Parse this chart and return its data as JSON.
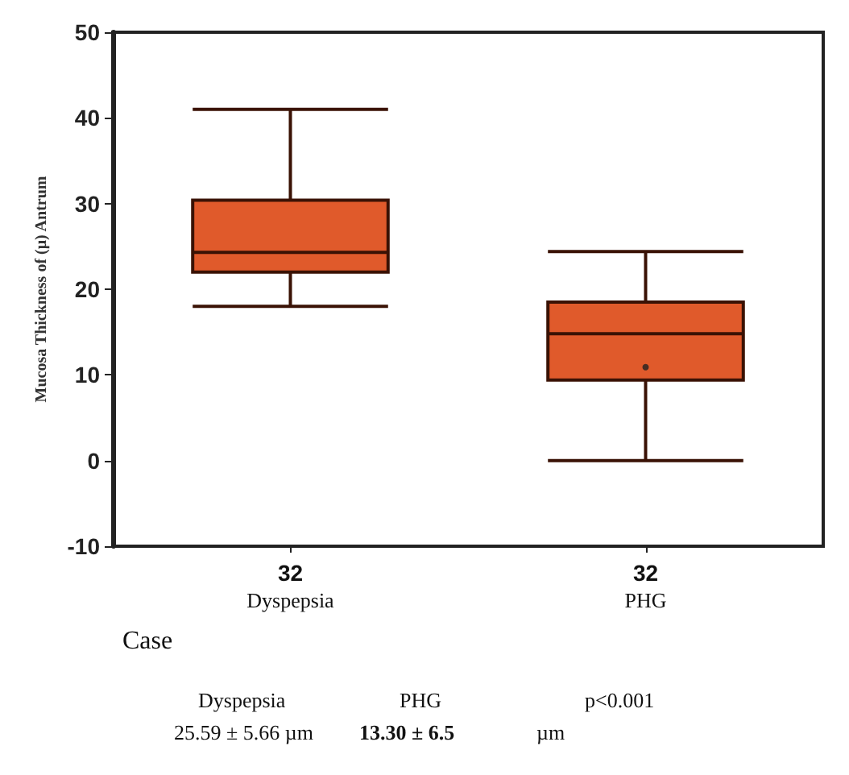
{
  "chart_data": {
    "type": "box",
    "xlabel": "Case",
    "ylabel": "Mucosa Thickness of (μ) Antrum",
    "categories": [
      "32\nDyspepsia",
      "32\nPHG"
    ],
    "color": "#e05a2b",
    "boxes": [
      {
        "low": 18,
        "q1": 22,
        "median": 24.3,
        "q3": 30.4,
        "high": 41
      },
      {
        "low": 0,
        "q1": 9.4,
        "median": 14.8,
        "q3": 18.5,
        "high": 24.4,
        "outliers": [
          10.9
        ]
      }
    ],
    "ylim": [
      -10,
      50
    ],
    "yticks": [
      -10,
      0,
      10,
      20,
      30,
      40,
      50
    ],
    "grid": false,
    "annotations": [
      "Dyspepsia",
      "25.59 ± 5.66 µm",
      "PHG",
      "13.30 ± 6.5",
      "µm",
      "p<0.001"
    ]
  }
}
